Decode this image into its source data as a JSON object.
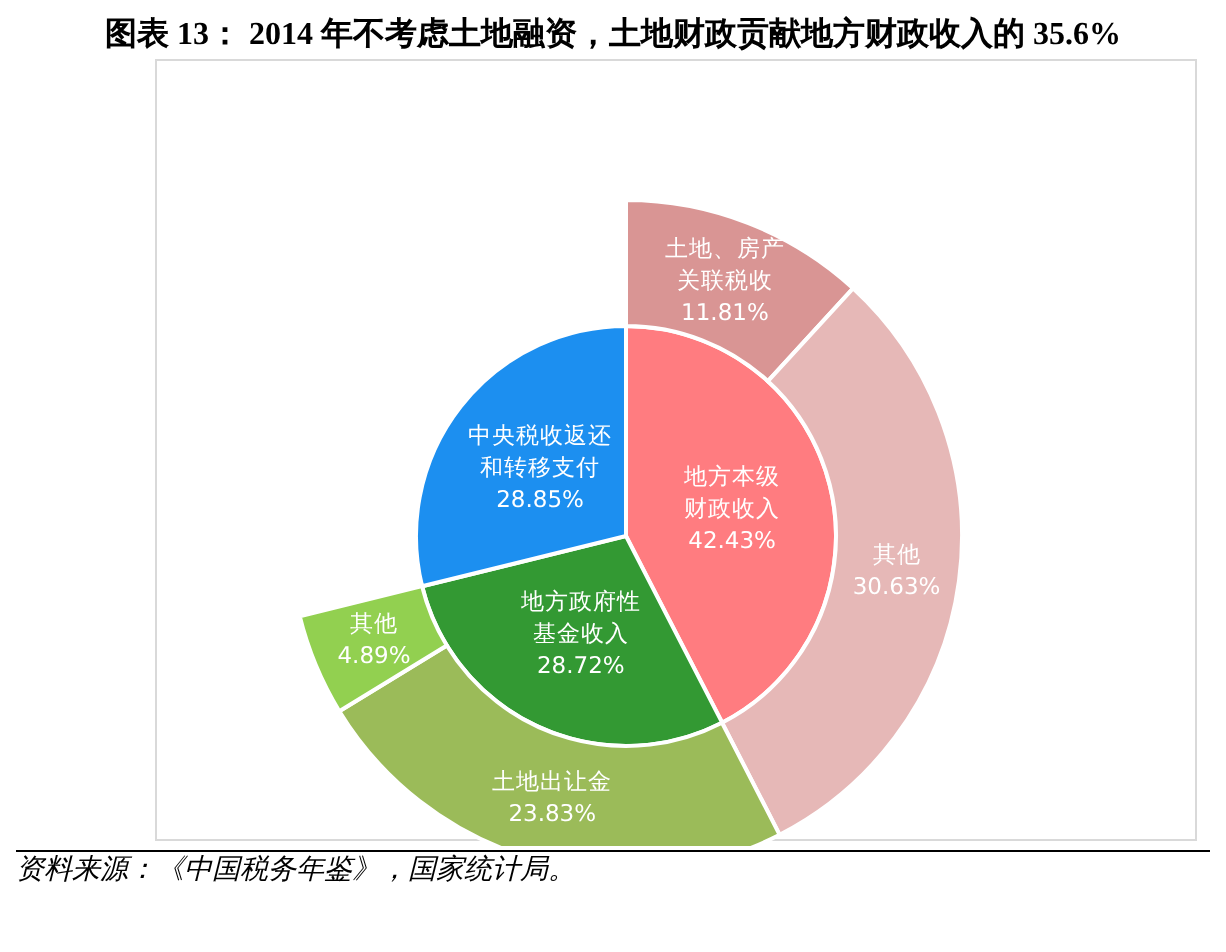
{
  "chart_data": [
    {
      "type": "pie",
      "title": "图表 13：    2014 年不考虑土地融资，土地财政贡献地方财政收入的 35.6%",
      "categories": [
        "地方本级财政收入",
        "地方政府性基金收入",
        "中央税收返还和转移支付"
      ],
      "values": [
        42.43,
        28.72,
        28.85
      ],
      "value_labels": [
        "42.43%",
        "28.72%",
        "28.85%"
      ],
      "colors": [
        "#ff7c80",
        "#339933",
        "#1c8ff0"
      ]
    },
    {
      "type": "donut",
      "categories": [
        "土地、房产关联税收",
        "其他",
        "土地出让金",
        "其他"
      ],
      "values": [
        11.81,
        30.63,
        23.83,
        4.89
      ],
      "value_labels": [
        "11.81%",
        "30.63%",
        "23.83%",
        "4.89%"
      ],
      "colors": [
        "#d99594",
        "#e6b8b7",
        "#9bbb59",
        "#92d050"
      ],
      "annotations": [
        "资料来源：《中国税务年鉴》，国家统计局。"
      ]
    }
  ]
}
